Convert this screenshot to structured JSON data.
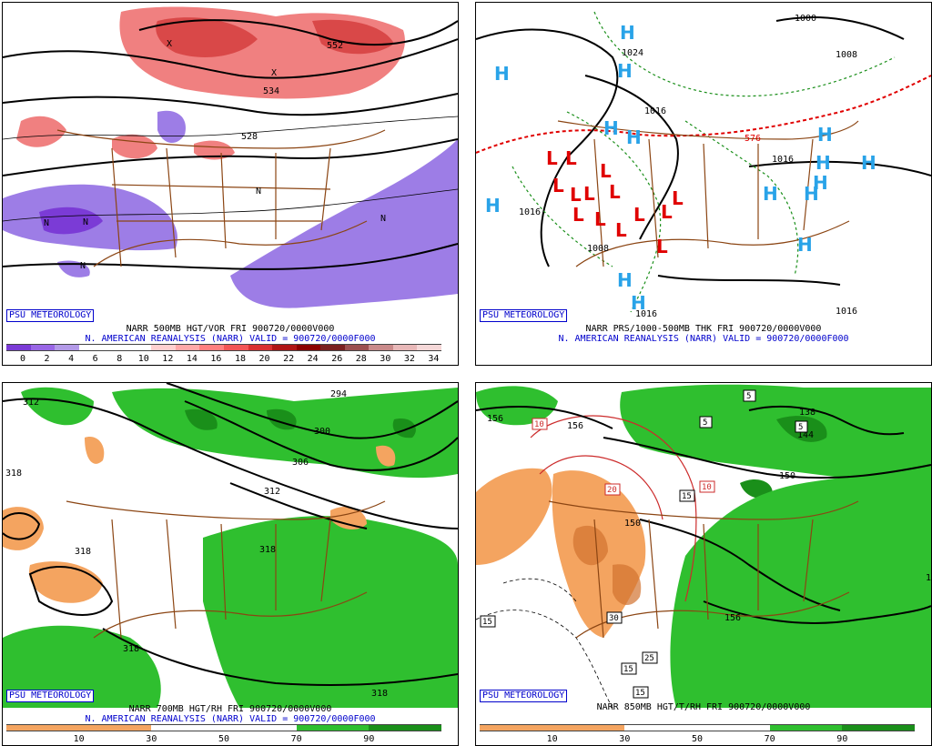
{
  "badge": "PSU METEOROLOGY",
  "panels": [
    {
      "id": "p1",
      "line1": "NARR 500MB HGT/VOR FRI 900720/0000V000",
      "line2": "N. AMERICAN REANALYSIS (NARR) VALID = 900720/0000F000",
      "colorbar": {
        "colors": [
          "#7b3bd6",
          "#9966e6",
          "#b39ae8",
          "#ffffff",
          "#ffffff",
          "#ffffff",
          "#ffd0d0",
          "#ffa8a8",
          "#ff7f7f",
          "#f25555",
          "#d93030",
          "#b01515",
          "#8b0000",
          "#7a2020",
          "#9c5050",
          "#c98a8a",
          "#e8b8b8",
          "#f5d8d8"
        ],
        "ticks": [
          "0",
          "2",
          "4",
          "6",
          "8",
          "10",
          "12",
          "14",
          "16",
          "18",
          "20",
          "22",
          "24",
          "26",
          "28",
          "30",
          "32",
          "34"
        ]
      },
      "labels": [
        "552",
        "528",
        "534",
        "N",
        "X"
      ]
    },
    {
      "id": "p2",
      "line1": "NARR PRS/1000-500MB THK FRI 900720/0000V000",
      "line2": "N. AMERICAN REANALYSIS (NARR) VALID = 900720/0000F000",
      "labels": [
        "1000",
        "1024",
        "1008",
        "1016",
        "1016",
        "1016",
        "1008",
        "1016",
        "1016",
        "576",
        "H",
        "L"
      ]
    },
    {
      "id": "p3",
      "line1": "NARR 700MB HGT/RH FRI 900720/0000V000",
      "line2": "N. AMERICAN REANALYSIS (NARR) VALID = 900720/0000F000",
      "colorbar": {
        "colors": [
          "#f4a460",
          "#f4a460",
          "#ffffff",
          "#ffffff",
          "#2fbf2f",
          "#1a8f1a"
        ],
        "ticks": [
          "10",
          "30",
          "50",
          "70",
          "90"
        ]
      },
      "labels": [
        "312",
        "318",
        "294",
        "300",
        "306",
        "312",
        "318",
        "318",
        "318",
        "318"
      ]
    },
    {
      "id": "p4",
      "line1": "NARR 850MB HGT/T/RH FRI 900720/0000V000",
      "colorbar": {
        "colors": [
          "#f4a460",
          "#f4a460",
          "#ffffff",
          "#ffffff",
          "#2fbf2f",
          "#1a8f1a"
        ],
        "ticks": [
          "10",
          "30",
          "50",
          "70",
          "90"
        ]
      },
      "labels": [
        "156",
        "156",
        "150",
        "138",
        "144",
        "150",
        "156",
        "5",
        "5",
        "5",
        "10",
        "10",
        "15",
        "15",
        "20",
        "25",
        "30",
        "15",
        "15",
        "1"
      ]
    }
  ]
}
